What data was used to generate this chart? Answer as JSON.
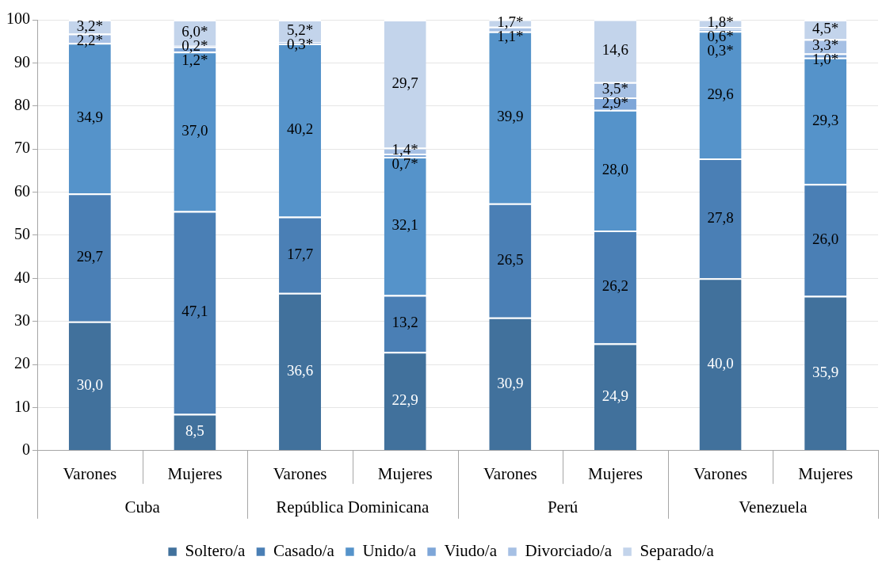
{
  "chart_data": {
    "type": "bar",
    "stacked": true,
    "categories": [
      "Varones",
      "Mujeres",
      "Varones",
      "Mujeres",
      "Varones",
      "Mujeres",
      "Varones",
      "Mujeres"
    ],
    "annotations": [
      "Cuba",
      "República Dominicana",
      "Perú",
      "Venezuela"
    ],
    "ylim": [
      0,
      100
    ],
    "yticks": [
      0,
      10,
      20,
      30,
      40,
      50,
      60,
      70,
      80,
      90,
      100
    ],
    "grid": "y",
    "legend": "bottom",
    "series": [
      {
        "name": "Soltero/a",
        "color": "#41719c",
        "values": [
          30.0,
          8.5,
          36.6,
          22.9,
          30.9,
          24.9,
          40.0,
          35.9
        ],
        "value_labels": [
          "30,0",
          "8,5",
          "36,6",
          "22,9",
          "30,9",
          "24,9",
          "40,0",
          "35,9"
        ]
      },
      {
        "name": "Casado/a",
        "color": "#4a7fb5",
        "values": [
          29.7,
          47.1,
          17.7,
          13.2,
          26.5,
          26.2,
          27.8,
          26.0
        ],
        "value_labels": [
          "29,7",
          "47,1",
          "17,7",
          "13,2",
          "26,5",
          "26,2",
          "27,8",
          "26,0"
        ]
      },
      {
        "name": "Unido/a",
        "color": "#5593ca",
        "values": [
          34.9,
          37.0,
          40.2,
          32.1,
          39.9,
          28.0,
          29.6,
          29.3
        ],
        "value_labels": [
          "34,9",
          "37,0",
          "40,2",
          "32,1",
          "39,9",
          "28,0",
          "29,6",
          "29,3"
        ]
      },
      {
        "name": "Viudo/a",
        "color": "#7ea6d8",
        "values": [
          null,
          1.2,
          null,
          0.7,
          null,
          2.9,
          0.3,
          1.0
        ],
        "value_labels": [
          null,
          "1,2*",
          null,
          "0,7*",
          null,
          "2,9*",
          "0,3*",
          "1,0*"
        ]
      },
      {
        "name": "Divorciado/a",
        "color": "#a6c0e4",
        "values": [
          2.2,
          0.2,
          0.3,
          1.4,
          1.1,
          3.5,
          0.6,
          3.3
        ],
        "value_labels": [
          "2,2*",
          "0,2*",
          "0,3*",
          "1,4*",
          "1,1*",
          "3,5*",
          "0,6*",
          "3,3*"
        ]
      },
      {
        "name": "Separado/a",
        "color": "#c3d4eb",
        "values": [
          3.2,
          6.0,
          5.2,
          29.7,
          1.7,
          14.6,
          1.8,
          4.5
        ],
        "value_labels": [
          "3,2*",
          "6,0*",
          "5,2*",
          "29,7",
          "1,7*",
          "14,6",
          "1,8*",
          "4,5*"
        ]
      }
    ]
  }
}
